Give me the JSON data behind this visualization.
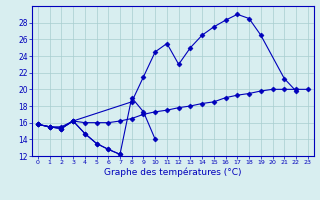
{
  "title": "Graphe des températures (°C)",
  "hours": [
    0,
    1,
    2,
    3,
    4,
    5,
    6,
    7,
    8,
    9,
    10,
    11,
    12,
    13,
    14,
    15,
    16,
    17,
    18,
    19,
    20,
    21,
    22,
    23
  ],
  "line1": [
    15.8,
    15.5,
    15.3,
    16.2,
    14.7,
    13.5,
    12.8,
    12.2,
    null,
    null,
    null,
    null,
    null,
    null,
    null,
    null,
    null,
    null,
    null,
    null,
    null,
    null,
    null,
    null
  ],
  "line2": [
    15.8,
    15.5,
    15.3,
    16.2,
    14.7,
    13.5,
    12.8,
    12.2,
    19.0,
    17.3,
    14.0,
    null,
    null,
    null,
    null,
    null,
    null,
    null,
    null,
    null,
    null,
    null,
    null,
    null
  ],
  "line3": [
    15.8,
    15.5,
    15.3,
    16.2,
    null,
    null,
    null,
    null,
    18.5,
    21.5,
    24.5,
    25.5,
    23.0,
    25.0,
    26.5,
    27.5,
    28.3,
    29.0,
    28.5,
    26.5,
    null,
    21.3,
    19.8,
    null
  ],
  "line4": [
    15.8,
    15.5,
    15.5,
    16.2,
    16.0,
    16.0,
    16.0,
    16.2,
    16.5,
    17.0,
    17.3,
    17.5,
    17.8,
    18.0,
    18.3,
    18.5,
    19.0,
    19.3,
    19.5,
    19.8,
    20.0,
    20.0,
    20.0,
    20.0
  ],
  "line_color": "#0000bb",
  "marker": "D",
  "marker_size": 2.5,
  "background_color": "#d8eef0",
  "grid_color": "#a8cdd0",
  "ylim": [
    12,
    30
  ],
  "yticks": [
    12,
    14,
    16,
    18,
    20,
    22,
    24,
    26,
    28
  ],
  "xlim": [
    0,
    23
  ],
  "figw": 3.2,
  "figh": 2.0,
  "dpi": 100
}
